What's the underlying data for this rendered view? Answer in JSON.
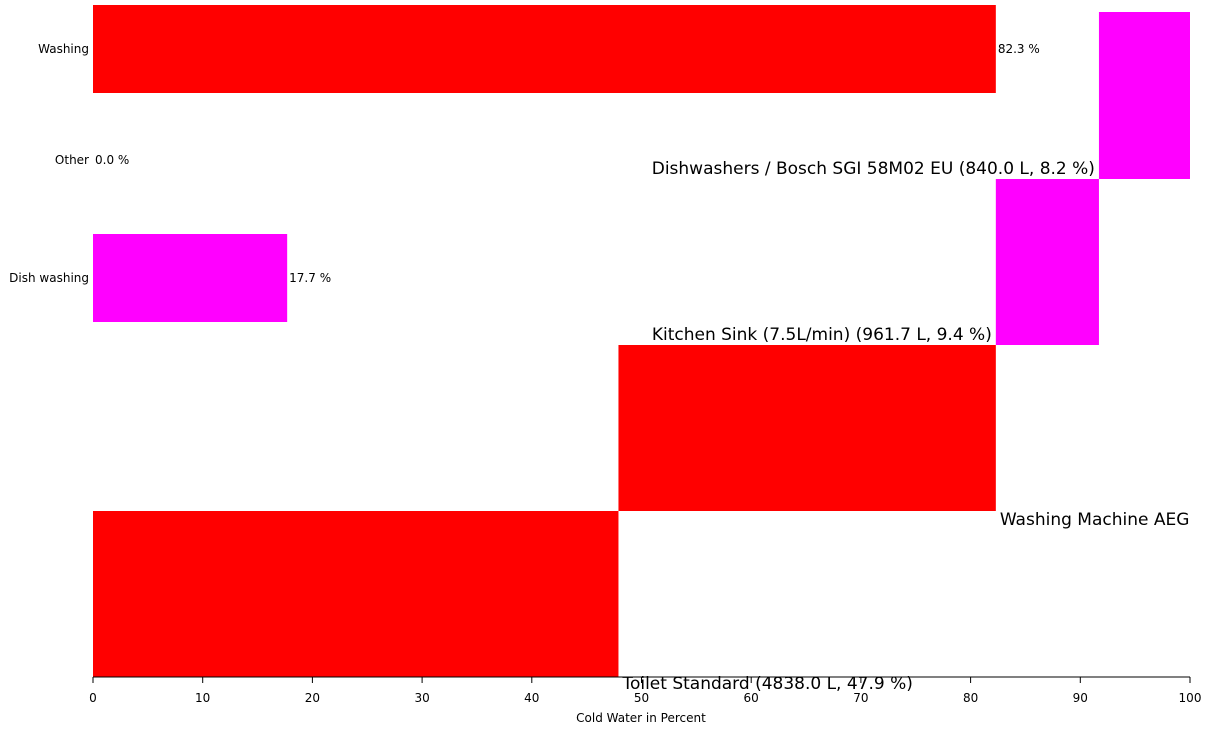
{
  "chart_data": {
    "type": "bar",
    "orientation": "horizontal",
    "xlabel": "Cold Water in Percent",
    "xlim": [
      0,
      100
    ],
    "xticks": [
      "0",
      "10",
      "20",
      "30",
      "40",
      "50",
      "60",
      "70",
      "80",
      "90",
      "100"
    ],
    "grid": false,
    "categories": [
      {
        "label": "Washing",
        "value": 82.3,
        "value_label": "82.3 %",
        "color": "#ff0000"
      },
      {
        "label": "Other",
        "value": 0.0,
        "value_label": "0.0 %",
        "color": "#ff0000"
      },
      {
        "label": "Dish washing",
        "value": 17.7,
        "value_label": "17.7 %",
        "color": "#ff00ff"
      }
    ],
    "segments": [
      {
        "label": "Toilet Standard (4838.0 L, 47.9 %)",
        "start": 0,
        "end": 47.9,
        "color": "#ff0000",
        "label_anchor": "start"
      },
      {
        "label": "Washing Machine AEG",
        "start": 47.9,
        "end": 82.3,
        "color": "#ff0000",
        "label_anchor": "start"
      },
      {
        "label": "Kitchen Sink (7.5L/min) (961.7 L, 9.4 %)",
        "start": 82.3,
        "end": 91.7,
        "color": "#ff00ff",
        "label_anchor": "end"
      },
      {
        "label": "Dishwashers / Bosch SGI 58M02 EU (840.0 L, 8.2 %)",
        "start": 91.7,
        "end": 100,
        "color": "#ff00ff",
        "label_anchor": "end"
      }
    ]
  }
}
